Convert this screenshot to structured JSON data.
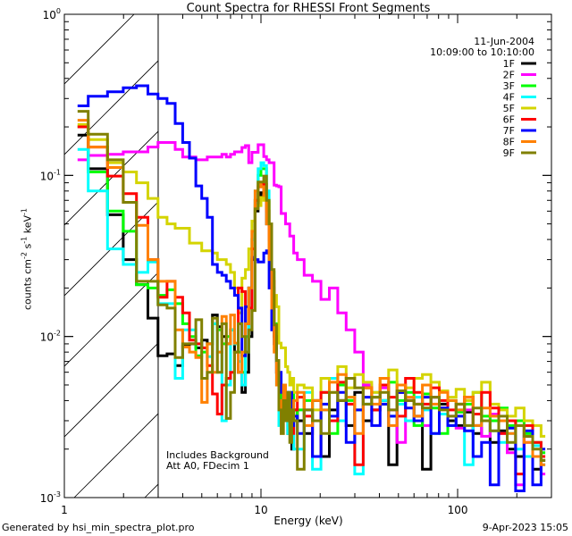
{
  "chart_data": {
    "type": "line",
    "title": "Count Spectra for RHESSI Front Segments",
    "xlabel": "Energy (keV)",
    "ylabel": {
      "base": "counts cm",
      "exp1": "-2",
      "mid": " s",
      "exp2": "-1",
      "mid2": " keV",
      "exp3": "-1"
    },
    "xscale": "log",
    "yscale": "log",
    "xlim": [
      1,
      300
    ],
    "ylim": [
      0.001,
      1
    ],
    "xticks": [
      {
        "value": 1,
        "label": "1"
      },
      {
        "value": 10,
        "label": "10"
      },
      {
        "value": 100,
        "label": "100"
      }
    ],
    "yticks": [
      {
        "value": 1,
        "base": "10",
        "exp": "0"
      },
      {
        "value": 0.1,
        "base": "10",
        "exp": "-1"
      },
      {
        "value": 0.01,
        "base": "10",
        "exp": "-2"
      },
      {
        "value": 0.001,
        "base": "10",
        "exp": "-3"
      }
    ],
    "hatched_range_keV": [
      1,
      3
    ],
    "legend": {
      "date": "11-Jun-2004",
      "time_range": "10:09:00 to 10:10:00",
      "placement": "top-right"
    },
    "annotations": [
      "Includes Background",
      "Att A0, FDecim 1"
    ],
    "energy_keV": [
      1.167,
      1.5,
      1.833,
      2.167,
      2.5,
      2.833,
      3.167,
      3.5,
      3.833,
      4.167,
      4.5,
      4.833,
      5.167,
      5.5,
      5.833,
      6.167,
      6.5,
      6.833,
      7.167,
      7.5,
      7.833,
      8.167,
      8.5,
      8.833,
      9.167,
      9.5,
      9.833,
      10.167,
      10.5,
      10.833,
      11.167,
      11.5,
      11.833,
      12.167,
      12.5,
      12.833,
      13.167,
      13.5,
      13.833,
      14.167,
      14.5,
      14.833,
      15.8,
      17.4,
      19.2,
      21.2,
      23.4,
      25.8,
      28.5,
      31.5,
      34.8,
      38.4,
      42.4,
      46.8,
      51.7,
      57.1,
      63.0,
      69.6,
      76.8,
      84.8,
      93.7,
      103,
      114,
      126,
      139,
      154,
      170,
      188,
      207,
      229,
      253,
      279
    ],
    "series": [
      {
        "name": "1F",
        "color": "#000000",
        "values": [
          0.178,
          0.11,
          0.057,
          0.03,
          0.021,
          0.013,
          0.0076,
          0.0078,
          0.0066,
          0.0087,
          0.009,
          0.0085,
          0.0095,
          0.009,
          0.0136,
          0.0115,
          0.01,
          0.009,
          0.011,
          0.008,
          0.006,
          0.0045,
          0.006,
          0.01,
          0.03,
          0.06,
          0.07,
          0.078,
          0.081,
          0.05,
          0.035,
          0.02,
          0.01,
          0.006,
          0.004,
          0.0035,
          0.003,
          0.0045,
          0.0025,
          0.003,
          0.002,
          0.0035,
          0.003,
          0.0025,
          0.004,
          0.0018,
          0.0035,
          0.004,
          0.0028,
          0.0045,
          0.003,
          0.0035,
          0.004,
          0.0016,
          0.0045,
          0.004,
          0.0032,
          0.0015,
          0.0042,
          0.0038,
          0.003,
          0.0028,
          0.0034,
          0.0025,
          0.003,
          0.0022,
          0.0026,
          0.002,
          0.0018,
          0.0024,
          0.0015,
          0.0017
        ]
      },
      {
        "name": "2F",
        "color": "#ff00ff",
        "values": [
          0.125,
          0.133,
          0.135,
          0.14,
          0.14,
          0.15,
          0.16,
          0.16,
          0.145,
          0.13,
          0.13,
          0.125,
          0.125,
          0.13,
          0.13,
          0.13,
          0.135,
          0.13,
          0.135,
          0.14,
          0.14,
          0.149,
          0.153,
          0.12,
          0.139,
          0.139,
          0.155,
          0.155,
          0.131,
          0.125,
          0.12,
          0.12,
          0.087,
          0.086,
          0.085,
          0.058,
          0.058,
          0.05,
          0.05,
          0.042,
          0.042,
          0.033,
          0.03,
          0.024,
          0.022,
          0.017,
          0.02,
          0.014,
          0.011,
          0.008,
          0.005,
          0.0042,
          0.0048,
          0.0035,
          0.0022,
          0.004,
          0.0038,
          0.0028,
          0.0042,
          0.0036,
          0.0032,
          0.0027,
          0.0035,
          0.0028,
          0.0024,
          0.0033,
          0.0025,
          0.0019,
          0.0012,
          0.0022,
          0.0018,
          0.0014
        ]
      },
      {
        "name": "3F",
        "color": "#00ff00",
        "values": [
          0.2,
          0.105,
          0.06,
          0.045,
          0.021,
          0.02,
          0.018,
          0.0195,
          0.016,
          0.012,
          0.01,
          0.0076,
          0.008,
          0.009,
          0.012,
          0.011,
          0.009,
          0.01,
          0.011,
          0.009,
          0.008,
          0.006,
          0.01,
          0.02,
          0.04,
          0.07,
          0.1,
          0.11,
          0.11,
          0.07,
          0.045,
          0.025,
          0.012,
          0.007,
          0.005,
          0.004,
          0.003,
          0.0035,
          0.004,
          0.003,
          0.0045,
          0.003,
          0.0035,
          0.004,
          0.003,
          0.0045,
          0.0025,
          0.005,
          0.004,
          0.0035,
          0.0048,
          0.0042,
          0.0038,
          0.0052,
          0.004,
          0.0045,
          0.0028,
          0.0044,
          0.0036,
          0.0025,
          0.004,
          0.0034,
          0.0038,
          0.0045,
          0.0032,
          0.003,
          0.0036,
          0.0028,
          0.003,
          0.0025,
          0.0022,
          0.0019
        ]
      },
      {
        "name": "4F",
        "color": "#00ffff",
        "values": [
          0.145,
          0.08,
          0.035,
          0.028,
          0.025,
          0.029,
          0.016,
          0.016,
          0.0055,
          0.011,
          0.011,
          0.009,
          0.0085,
          0.0075,
          0.012,
          0.008,
          0.003,
          0.005,
          0.011,
          0.009,
          0.007,
          0.005,
          0.008,
          0.015,
          0.04,
          0.08,
          0.11,
          0.12,
          0.115,
          0.08,
          0.04,
          0.02,
          0.01,
          0.005,
          0.0028,
          0.0035,
          0.004,
          0.003,
          0.0025,
          0.0045,
          0.003,
          0.002,
          0.002,
          0.0045,
          0.0015,
          0.0035,
          0.0055,
          0.003,
          0.0042,
          0.0014,
          0.0038,
          0.0045,
          0.004,
          0.0032,
          0.0038,
          0.003,
          0.0042,
          0.0035,
          0.0025,
          0.0033,
          0.0028,
          0.0035,
          0.0016,
          0.0028,
          0.003,
          0.0026,
          0.0022,
          0.0025,
          0.002,
          0.0018,
          0.0021,
          0.0016
        ]
      },
      {
        "name": "5F",
        "color": "#d4d400",
        "values": [
          0.207,
          0.167,
          0.12,
          0.105,
          0.09,
          0.072,
          0.055,
          0.05,
          0.047,
          0.047,
          0.038,
          0.038,
          0.034,
          0.034,
          0.033,
          0.03,
          0.03,
          0.028,
          0.025,
          0.02,
          0.014,
          0.023,
          0.026,
          0.035,
          0.052,
          0.065,
          0.065,
          0.073,
          0.07,
          0.068,
          0.033,
          0.023,
          0.018,
          0.0153,
          0.0091,
          0.0085,
          0.0085,
          0.0065,
          0.006,
          0.005,
          0.0055,
          0.0045,
          0.005,
          0.0048,
          0.0035,
          0.0055,
          0.0045,
          0.0065,
          0.0048,
          0.0058,
          0.0052,
          0.0045,
          0.0055,
          0.0062,
          0.005,
          0.0048,
          0.0055,
          0.0058,
          0.0052,
          0.0046,
          0.0042,
          0.0047,
          0.004,
          0.0045,
          0.0052,
          0.0038,
          0.0035,
          0.0032,
          0.0036,
          0.003,
          0.0028,
          0.0024
        ]
      },
      {
        "name": "6F",
        "color": "#ff0000",
        "values": [
          0.2,
          0.15,
          0.099,
          0.077,
          0.055,
          0.03,
          0.0175,
          0.022,
          0.0175,
          0.014,
          0.0095,
          0.009,
          0.0085,
          0.0066,
          0.0044,
          0.0033,
          0.005,
          0.0055,
          0.006,
          0.008,
          0.02,
          0.019,
          0.012,
          0.015,
          0.035,
          0.07,
          0.085,
          0.09,
          0.088,
          0.06,
          0.04,
          0.022,
          0.01,
          0.006,
          0.004,
          0.003,
          0.0045,
          0.0035,
          0.003,
          0.004,
          0.0025,
          0.0035,
          0.0042,
          0.0032,
          0.0018,
          0.0045,
          0.003,
          0.0052,
          0.0038,
          0.0016,
          0.0048,
          0.0035,
          0.005,
          0.0042,
          0.0032,
          0.0055,
          0.0045,
          0.0038,
          0.0048,
          0.004,
          0.0035,
          0.0038,
          0.0042,
          0.0033,
          0.0045,
          0.0036,
          0.0025,
          0.003,
          0.0014,
          0.0028,
          0.0022,
          0.0018
        ]
      },
      {
        "name": "7F",
        "color": "#0000ff",
        "values": [
          0.27,
          0.31,
          0.33,
          0.35,
          0.36,
          0.32,
          0.3,
          0.28,
          0.21,
          0.16,
          0.128,
          0.086,
          0.072,
          0.055,
          0.028,
          0.025,
          0.024,
          0.022,
          0.02,
          0.018,
          0.015,
          0.0076,
          0.0153,
          0.02,
          0.031,
          0.03,
          0.029,
          0.029,
          0.033,
          0.034,
          0.02,
          0.011,
          0.009,
          0.007,
          0.006,
          0.0045,
          0.004,
          0.0035,
          0.003,
          0.0045,
          0.0028,
          0.0032,
          0.0025,
          0.0035,
          0.0018,
          0.0038,
          0.0032,
          0.0045,
          0.0022,
          0.0035,
          0.0042,
          0.0028,
          0.0038,
          0.0032,
          0.0045,
          0.0036,
          0.003,
          0.0042,
          0.0025,
          0.0036,
          0.0028,
          0.0032,
          0.0026,
          0.0018,
          0.0022,
          0.0012,
          0.003,
          0.0027,
          0.0011,
          0.0026,
          0.0012,
          0.002
        ]
      },
      {
        "name": "8F",
        "color": "#ff8000",
        "values": [
          0.22,
          0.15,
          0.112,
          0.068,
          0.049,
          0.03,
          0.022,
          0.022,
          0.011,
          0.0086,
          0.008,
          0.0074,
          0.0039,
          0.009,
          0.006,
          0.008,
          0.0133,
          0.009,
          0.0136,
          0.0091,
          0.006,
          0.008,
          0.012,
          0.02,
          0.045,
          0.08,
          0.089,
          0.085,
          0.075,
          0.05,
          0.03,
          0.015,
          0.008,
          0.005,
          0.004,
          0.0025,
          0.005,
          0.003,
          0.004,
          0.0028,
          0.0035,
          0.004,
          0.0045,
          0.0028,
          0.004,
          0.0035,
          0.0052,
          0.0058,
          0.0042,
          0.0025,
          0.0048,
          0.0038,
          0.0055,
          0.0028,
          0.005,
          0.0042,
          0.0032,
          0.005,
          0.0038,
          0.0045,
          0.004,
          0.0035,
          0.0042,
          0.0028,
          0.0036,
          0.0032,
          0.003,
          0.0025,
          0.0028,
          0.0022,
          0.0018,
          0.0016
        ]
      },
      {
        "name": "9F",
        "color": "#808000",
        "values": [
          0.25,
          0.18,
          0.125,
          0.068,
          0.022,
          0.022,
          0.0157,
          0.015,
          0.0074,
          0.009,
          0.009,
          0.0127,
          0.0055,
          0.006,
          0.013,
          0.006,
          0.012,
          0.0031,
          0.0045,
          0.008,
          0.012,
          0.01,
          0.008,
          0.011,
          0.0145,
          0.062,
          0.091,
          0.091,
          0.099,
          0.07,
          0.05,
          0.026,
          0.0118,
          0.0071,
          0.0035,
          0.0025,
          0.004,
          0.003,
          0.0045,
          0.0022,
          0.0035,
          0.003,
          0.0015,
          0.0035,
          0.003,
          0.0025,
          0.0045,
          0.004,
          0.0055,
          0.0048,
          0.0038,
          0.0042,
          0.0045,
          0.0035,
          0.0046,
          0.004,
          0.0038,
          0.0036,
          0.0042,
          0.0035,
          0.0032,
          0.0038,
          0.0028,
          0.0036,
          0.003,
          0.0026,
          0.0032,
          0.0022,
          0.0028,
          0.0024,
          0.002,
          0.0017
        ]
      }
    ]
  },
  "footer": {
    "left": "Generated by hsi_min_spectra_plot.pro",
    "right": "9-Apr-2023 15:05"
  }
}
